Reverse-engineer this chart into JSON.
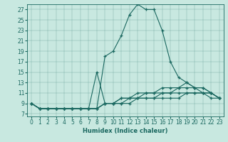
{
  "xlabel": "Humidex (Indice chaleur)",
  "bg_color": "#c8e8e0",
  "line_color": "#1a6860",
  "xlim": [
    -0.5,
    23.5
  ],
  "ylim": [
    6.5,
    28.0
  ],
  "yticks": [
    7,
    9,
    11,
    13,
    15,
    17,
    19,
    21,
    23,
    25,
    27
  ],
  "xticks": [
    0,
    1,
    2,
    3,
    4,
    5,
    6,
    7,
    8,
    9,
    10,
    11,
    12,
    13,
    14,
    15,
    16,
    17,
    18,
    19,
    20,
    21,
    22,
    23
  ],
  "lines": [
    {
      "x": [
        0,
        1,
        2,
        3,
        4,
        5,
        6,
        7,
        8,
        9,
        10,
        11,
        12,
        13,
        14,
        15,
        16,
        17,
        18,
        19,
        20,
        21,
        22,
        23
      ],
      "y": [
        9,
        8,
        8,
        8,
        8,
        8,
        8,
        8,
        8,
        18,
        19,
        22,
        26,
        28,
        27,
        27,
        23,
        17,
        14,
        13,
        12,
        11,
        10,
        10
      ]
    },
    {
      "x": [
        0,
        1,
        2,
        3,
        4,
        5,
        6,
        7,
        8,
        9,
        10,
        11,
        12,
        13,
        14,
        15,
        16,
        17,
        18,
        19,
        20,
        21,
        22,
        23
      ],
      "y": [
        9,
        8,
        8,
        8,
        8,
        8,
        8,
        8,
        15,
        9,
        9,
        10,
        10,
        11,
        11,
        11,
        12,
        12,
        12,
        13,
        12,
        12,
        11,
        10
      ]
    },
    {
      "x": [
        0,
        1,
        2,
        3,
        4,
        5,
        6,
        7,
        8,
        9,
        10,
        11,
        12,
        13,
        14,
        15,
        16,
        17,
        18,
        19,
        20,
        21,
        22,
        23
      ],
      "y": [
        9,
        8,
        8,
        8,
        8,
        8,
        8,
        8,
        8,
        9,
        9,
        10,
        10,
        10,
        11,
        11,
        11,
        11,
        12,
        12,
        12,
        12,
        11,
        10
      ]
    },
    {
      "x": [
        0,
        1,
        2,
        3,
        4,
        5,
        6,
        7,
        8,
        9,
        10,
        11,
        12,
        13,
        14,
        15,
        16,
        17,
        18,
        19,
        20,
        21,
        22,
        23
      ],
      "y": [
        9,
        8,
        8,
        8,
        8,
        8,
        8,
        8,
        8,
        9,
        9,
        9,
        10,
        10,
        10,
        10,
        11,
        11,
        11,
        11,
        11,
        11,
        11,
        10
      ]
    },
    {
      "x": [
        0,
        1,
        2,
        3,
        4,
        5,
        6,
        7,
        8,
        9,
        10,
        11,
        12,
        13,
        14,
        15,
        16,
        17,
        18,
        19,
        20,
        21,
        22,
        23
      ],
      "y": [
        9,
        8,
        8,
        8,
        8,
        8,
        8,
        8,
        8,
        9,
        9,
        9,
        9,
        10,
        10,
        10,
        10,
        10,
        10,
        11,
        11,
        11,
        11,
        10
      ]
    }
  ]
}
